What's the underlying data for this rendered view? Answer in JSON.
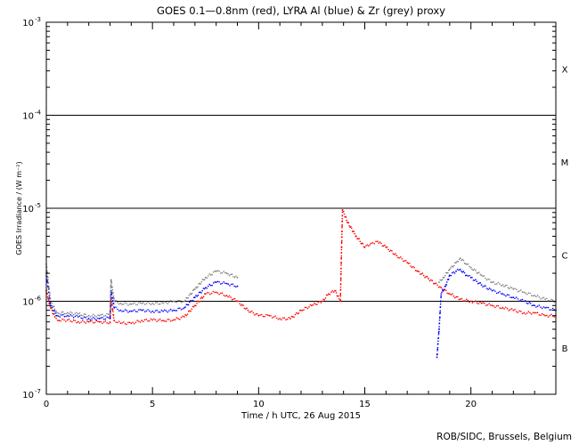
{
  "chart_data": {
    "type": "scatter",
    "title": "GOES 0.1—0.8nm (red), LYRA Al (blue) & Zr (grey) proxy",
    "xlabel": "Time / h UTC, 26 Aug 2015",
    "ylabel": "GOES Irradiance / (W m⁻²)",
    "xlim": [
      0,
      24
    ],
    "ylim": [
      1e-07,
      0.001
    ],
    "yscale": "log",
    "x_ticks": [
      0,
      5,
      10,
      15,
      20
    ],
    "x_tick_labels": [
      "0",
      "5",
      "10",
      "15",
      "20"
    ],
    "y_ticks": [
      1e-07,
      1e-06,
      1e-05,
      0.0001,
      0.001
    ],
    "y_tick_labels": [
      {
        "base": "10",
        "exp": "-7"
      },
      {
        "base": "10",
        "exp": "-6"
      },
      {
        "base": "10",
        "exp": "-5"
      },
      {
        "base": "10",
        "exp": "-4"
      },
      {
        "base": "10",
        "exp": "-3"
      }
    ],
    "flare_class_lines": [
      1e-06,
      1e-05,
      0.0001
    ],
    "flare_classes": [
      {
        "label": "B",
        "y": 3.16e-07
      },
      {
        "label": "C",
        "y": 3.16e-06
      },
      {
        "label": "M",
        "y": 3.16e-05
      },
      {
        "label": "X",
        "y": 0.000316
      }
    ],
    "series": [
      {
        "color": "#ff0000",
        "x": [
          0.0,
          0.2,
          0.4,
          0.6,
          1.0,
          1.5,
          2.0,
          2.5,
          3.0,
          3.05,
          3.2,
          3.5,
          4.0,
          4.5,
          5.0,
          5.5,
          6.0,
          6.5,
          7.0,
          7.5,
          8.0,
          8.5,
          9.0,
          9.5,
          10.0,
          10.5,
          11.0,
          11.5,
          12.0,
          12.5,
          13.0,
          13.3,
          13.6,
          13.85,
          13.95,
          14.2,
          14.6,
          15.0,
          15.3,
          15.6,
          16.0,
          16.5,
          17.0,
          17.5,
          18.0,
          18.3,
          18.6,
          19.0,
          19.5,
          20.0,
          20.5,
          21.0,
          21.5,
          22.0,
          22.5,
          23.0,
          23.5,
          24.0
        ],
        "y": [
          1.3e-06,
          8.5e-07,
          6.8e-07,
          6.2e-07,
          6.3e-07,
          6e-07,
          6e-07,
          6e-07,
          5.9e-07,
          1.05e-06,
          6.2e-07,
          5.8e-07,
          5.8e-07,
          6.2e-07,
          6.3e-07,
          6.2e-07,
          6.3e-07,
          6.8e-07,
          9e-07,
          1.2e-06,
          1.25e-06,
          1.15e-06,
          1e-06,
          8e-07,
          7e-07,
          7e-07,
          6.5e-07,
          6.5e-07,
          8e-07,
          9e-07,
          1e-06,
          1.2e-06,
          1.3e-06,
          1e-06,
          9.6e-06,
          7e-06,
          5e-06,
          3.8e-06,
          4.2e-06,
          4.4e-06,
          3.8e-06,
          3.1e-06,
          2.6e-06,
          2.1e-06,
          1.75e-06,
          1.55e-06,
          1.4e-06,
          1.2e-06,
          1.05e-06,
          1e-06,
          9.5e-07,
          9e-07,
          8.5e-07,
          8e-07,
          7.5e-07,
          7.5e-07,
          7e-07,
          7e-07
        ]
      },
      {
        "color": "#0000ff",
        "x": [
          0.0,
          0.2,
          0.5,
          1.0,
          1.5,
          2.0,
          2.5,
          3.0,
          3.05,
          3.2,
          3.5,
          4.0,
          4.5,
          5.0,
          5.5,
          6.0,
          6.5,
          7.0,
          7.5,
          8.0,
          8.5,
          9.0,
          18.4,
          18.5,
          18.6,
          18.8,
          19.0,
          19.3,
          19.5,
          19.8,
          20.0,
          20.5,
          21.0,
          21.5,
          22.0,
          22.5,
          23.0,
          23.5,
          24.0
        ],
        "y": [
          2e-06,
          9e-07,
          7e-07,
          7e-07,
          6.8e-07,
          6.5e-07,
          6.5e-07,
          6.6e-07,
          1.3e-06,
          8.5e-07,
          8e-07,
          7.8e-07,
          8e-07,
          7.8e-07,
          7.8e-07,
          8e-07,
          8.5e-07,
          1.1e-06,
          1.4e-06,
          1.6e-06,
          1.55e-06,
          1.45e-06,
          2.5e-07,
          5e-07,
          1.2e-06,
          1.45e-06,
          1.9e-06,
          2.1e-06,
          2.2e-06,
          1.9e-06,
          1.8e-06,
          1.5e-06,
          1.3e-06,
          1.2e-06,
          1.1e-06,
          1e-06,
          9e-07,
          8.5e-07,
          8e-07
        ]
      },
      {
        "color": "#808080",
        "x": [
          0.0,
          0.2,
          0.5,
          1.0,
          1.5,
          2.0,
          2.5,
          3.0,
          3.05,
          3.2,
          3.5,
          4.0,
          4.5,
          5.0,
          5.5,
          6.0,
          6.5,
          7.0,
          7.5,
          8.0,
          8.5,
          9.0,
          18.5,
          18.7,
          19.0,
          19.3,
          19.5,
          19.8,
          20.0,
          20.5,
          21.0,
          21.5,
          22.0,
          22.5,
          23.0,
          23.5,
          24.0
        ],
        "y": [
          2.5e-06,
          1e-06,
          7.5e-07,
          7.5e-07,
          7.3e-07,
          7e-07,
          7e-07,
          7.2e-07,
          1.7e-06,
          1e-06,
          9.5e-07,
          9.3e-07,
          9.5e-07,
          9.5e-07,
          9.5e-07,
          1e-06,
          1e-06,
          1.35e-06,
          1.8e-06,
          2.1e-06,
          2e-06,
          1.8e-06,
          1.6e-06,
          1.8e-06,
          2.2e-06,
          2.6e-06,
          2.9e-06,
          2.5e-06,
          2.3e-06,
          1.9e-06,
          1.6e-06,
          1.5e-06,
          1.35e-06,
          1.25e-06,
          1.15e-06,
          1.05e-06,
          1e-06
        ]
      }
    ]
  },
  "credit": "ROB/SIDC, Brussels, Belgium"
}
